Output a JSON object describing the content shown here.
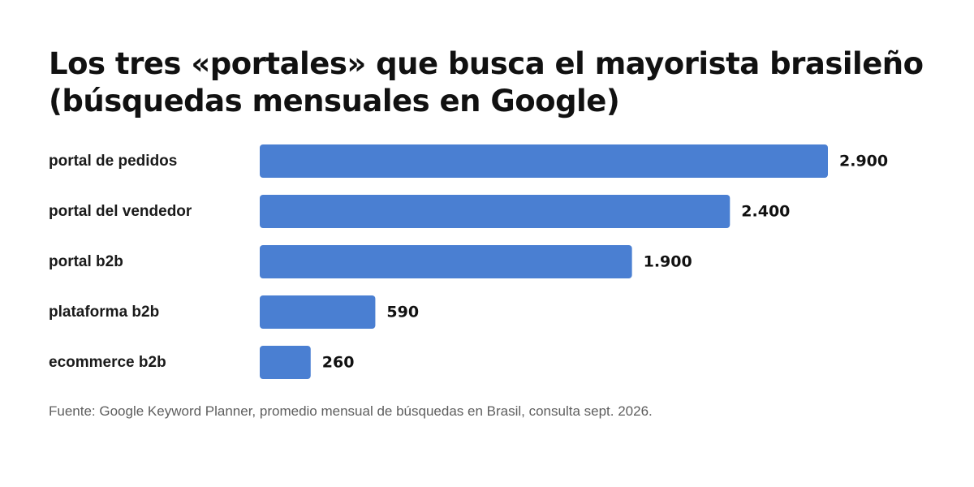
{
  "chart_data": {
    "type": "bar",
    "orientation": "horizontal",
    "title_lines": [
      "Los tres «portales» que busca el mayorista brasileño",
      "(búsquedas mensuales en Google)"
    ],
    "categories": [
      "portal de pedidos",
      "portal del vendedor",
      "portal b2b",
      "plataforma b2b",
      "ecommerce b2b"
    ],
    "values": [
      2900,
      2400,
      1900,
      590,
      260
    ],
    "value_labels": [
      "2.900",
      "2.400",
      "1.900",
      "590",
      "260"
    ],
    "xlim": [
      0,
      2900
    ],
    "grid": false,
    "legend": "none",
    "bar_color": "#4a7fd2",
    "source": "Fuente: Google Keyword Planner, promedio mensual de búsquedas en Brasil, consulta sept. 2026."
  }
}
